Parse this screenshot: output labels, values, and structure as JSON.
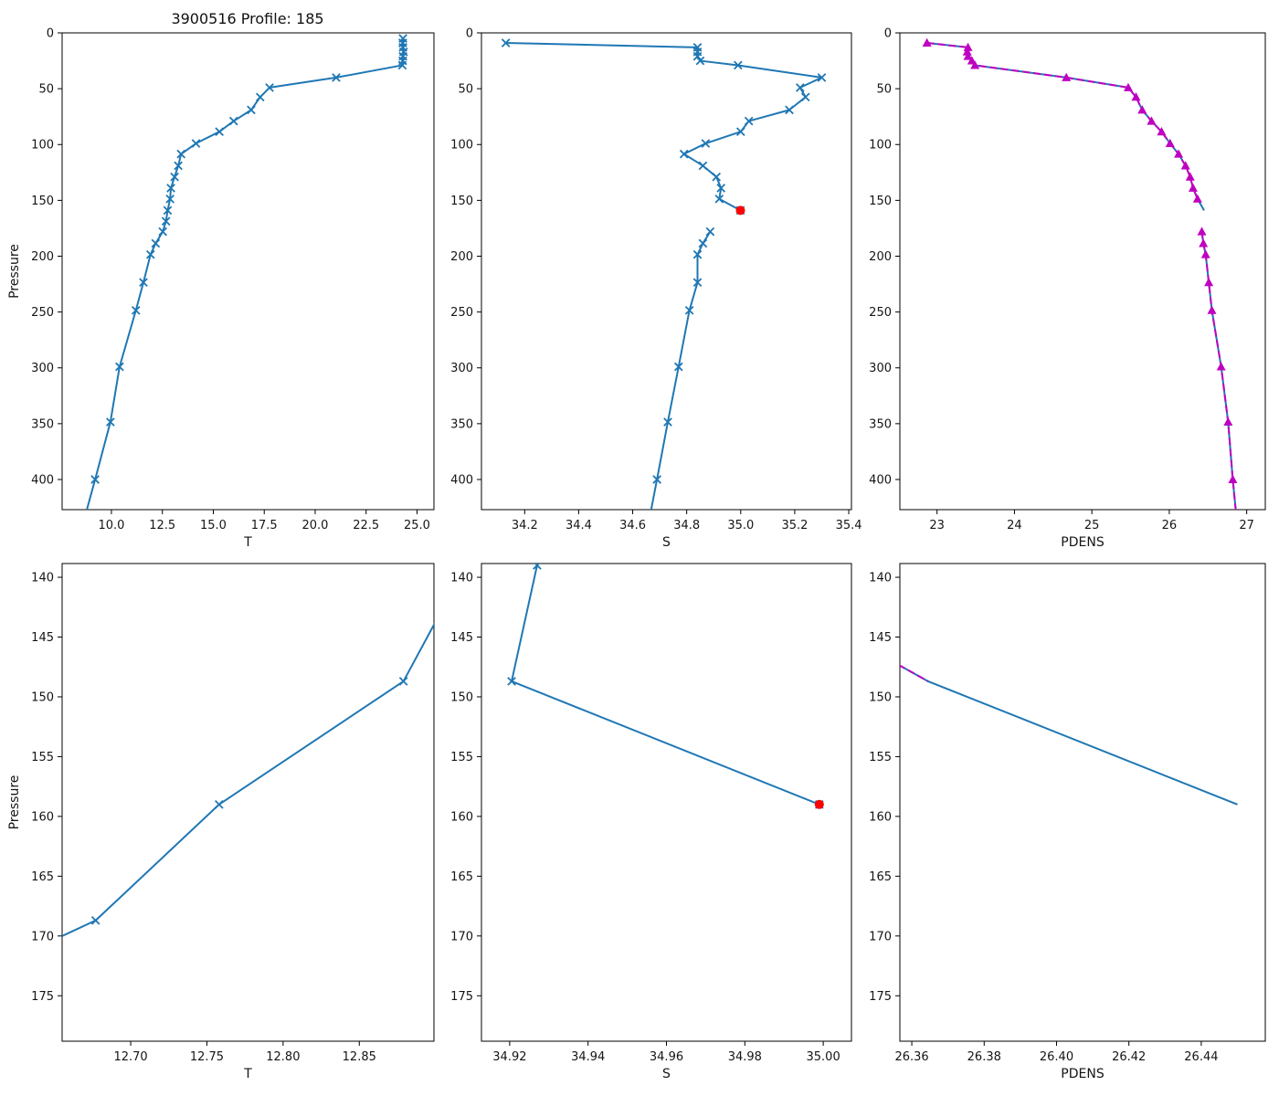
{
  "figure": {
    "title": "3900516 Profile: 185",
    "background": "#ffffff"
  },
  "chart_data": {
    "type": "line",
    "title": "3900516 Profile: 185",
    "legend": "none",
    "grid": false,
    "y_axis_inverted": true,
    "colors": {
      "profile_line": "#1f77b4",
      "qc_overlay": "#c000c0",
      "error_point": "#ff0000"
    },
    "plots": [
      {
        "id": "t-full",
        "xlabel": "T",
        "ylabel": "Pressure",
        "xlim": [
          7.58,
          25.83
        ],
        "ylim": [
          0,
          427
        ],
        "xticks": {
          "values": [
            10.0,
            12.5,
            15.0,
            17.5,
            20.0,
            22.5,
            25.0
          ],
          "labels": [
            "10.0",
            "12.5",
            "15.0",
            "17.5",
            "20.0",
            "22.5",
            "25.0"
          ]
        },
        "yticks": {
          "values": [
            0,
            50,
            100,
            150,
            200,
            250,
            300,
            350,
            400
          ],
          "labels": [
            "0",
            "50",
            "100",
            "150",
            "200",
            "250",
            "300",
            "350",
            "400"
          ]
        },
        "lines": [
          {
            "name": "temperature-profile",
            "color": "#1f77b4",
            "dash": null,
            "marker": "x",
            "points": [
              [
                24.31,
                5
              ],
              [
                24.3,
                9
              ],
              [
                24.31,
                13
              ],
              [
                24.34,
                17
              ],
              [
                24.31,
                21
              ],
              [
                24.3,
                25
              ],
              [
                24.28,
                29
              ],
              [
                21.03,
                40
              ],
              [
                17.76,
                49
              ],
              [
                17.3,
                57.5
              ],
              [
                16.86,
                69
              ],
              [
                16.0,
                79
              ],
              [
                15.3,
                88.5
              ],
              [
                14.15,
                99
              ],
              [
                13.42,
                108.5
              ],
              [
                13.28,
                119
              ],
              [
                13.1,
                129
              ],
              [
                12.92,
                139
              ],
              [
                12.879,
                148.7
              ],
              [
                12.758,
                159
              ],
              [
                12.677,
                168.7
              ],
              [
                12.52,
                178
              ],
              [
                12.17,
                188.5
              ],
              [
                11.92,
                198.5
              ],
              [
                11.57,
                223.5
              ],
              [
                11.2,
                248.5
              ],
              [
                10.4,
                299
              ],
              [
                9.95,
                348.5
              ],
              [
                9.2,
                400
              ],
              [
                8.45,
                450
              ]
            ]
          }
        ]
      },
      {
        "id": "s-full",
        "xlabel": "S",
        "ylabel": null,
        "xlim": [
          34.04,
          35.41
        ],
        "ylim": [
          0,
          427
        ],
        "xticks": {
          "values": [
            34.2,
            34.4,
            34.6,
            34.8,
            35.0,
            35.2,
            35.4
          ],
          "labels": [
            "34.2",
            "34.4",
            "34.6",
            "34.8",
            "35.0",
            "35.2",
            "35.4"
          ]
        },
        "yticks": {
          "values": [
            0,
            50,
            100,
            150,
            200,
            250,
            300,
            350,
            400
          ],
          "labels": [
            "0",
            "50",
            "100",
            "150",
            "200",
            "250",
            "300",
            "350",
            "400"
          ]
        },
        "lines": [
          {
            "name": "salinity-profile-upper",
            "color": "#1f77b4",
            "dash": null,
            "marker": "x",
            "points": [
              [
                34.13,
                9
              ],
              [
                34.84,
                13
              ],
              [
                34.84,
                17
              ],
              [
                34.84,
                21
              ],
              [
                34.85,
                25
              ],
              [
                34.99,
                29
              ],
              [
                35.3,
                40
              ],
              [
                35.22,
                49
              ],
              [
                35.24,
                57.5
              ],
              [
                35.18,
                69
              ],
              [
                35.03,
                79
              ],
              [
                35.0,
                88.5
              ],
              [
                34.87,
                99
              ],
              [
                34.79,
                108.5
              ],
              [
                34.86,
                119
              ],
              [
                34.91,
                129
              ],
              [
                34.927,
                139
              ],
              [
                34.9205,
                148.7
              ],
              [
                34.999,
                159
              ]
            ]
          },
          {
            "name": "salinity-profile-lower",
            "color": "#1f77b4",
            "dash": null,
            "marker": "x",
            "points": [
              [
                34.887,
                178
              ],
              [
                34.86,
                188.5
              ],
              [
                34.84,
                198.5
              ],
              [
                34.84,
                223.5
              ],
              [
                34.81,
                248.5
              ],
              [
                34.77,
                299
              ],
              [
                34.73,
                348.5
              ],
              [
                34.69,
                400
              ],
              [
                34.65,
                450
              ]
            ]
          }
        ],
        "error_point": {
          "value": 34.999,
          "pressure": 159,
          "color": "#ff0000"
        }
      },
      {
        "id": "pdens-full",
        "xlabel": "PDENS",
        "ylabel": null,
        "xlim": [
          22.52,
          27.24
        ],
        "ylim": [
          0,
          427
        ],
        "xticks": {
          "values": [
            23,
            24,
            25,
            26,
            27
          ],
          "labels": [
            "23",
            "24",
            "25",
            "26",
            "27"
          ]
        },
        "yticks": {
          "values": [
            0,
            50,
            100,
            150,
            200,
            250,
            300,
            350,
            400
          ],
          "labels": [
            "0",
            "50",
            "100",
            "150",
            "200",
            "250",
            "300",
            "350",
            "400"
          ]
        },
        "lines": [
          {
            "name": "pdens-raw-upper",
            "color": "#1f77b4",
            "dash": null,
            "marker": null,
            "points": [
              [
                22.87,
                9
              ],
              [
                23.4,
                13
              ],
              [
                23.39,
                17
              ],
              [
                23.4,
                21
              ],
              [
                23.45,
                25
              ],
              [
                23.49,
                29
              ],
              [
                24.67,
                40
              ],
              [
                25.47,
                49
              ],
              [
                25.57,
                57.5
              ],
              [
                25.65,
                69
              ],
              [
                25.77,
                79
              ],
              [
                25.9,
                88.5
              ],
              [
                26.01,
                99
              ],
              [
                26.12,
                108.5
              ],
              [
                26.21,
                119
              ],
              [
                26.27,
                129
              ],
              [
                26.307,
                139
              ],
              [
                26.3645,
                148.7
              ],
              [
                26.45,
                159
              ]
            ]
          },
          {
            "name": "pdens-raw-lower",
            "color": "#1f77b4",
            "dash": null,
            "marker": null,
            "points": [
              [
                26.42,
                178
              ],
              [
                26.44,
                188.5
              ],
              [
                26.47,
                198.5
              ],
              [
                26.51,
                223.5
              ],
              [
                26.55,
                248.5
              ],
              [
                26.67,
                299
              ],
              [
                26.76,
                348.5
              ],
              [
                26.82,
                400
              ],
              [
                26.89,
                450
              ]
            ]
          },
          {
            "name": "pdens-qc-upper",
            "color": "#c000c0",
            "dash": "8 4",
            "marker": "triangle",
            "points": [
              [
                22.87,
                9
              ],
              [
                23.4,
                13
              ],
              [
                23.39,
                17
              ],
              [
                23.4,
                21
              ],
              [
                23.45,
                25
              ],
              [
                23.49,
                29
              ],
              [
                24.67,
                40
              ],
              [
                25.47,
                49
              ],
              [
                25.57,
                57.5
              ],
              [
                25.65,
                69
              ],
              [
                25.77,
                79
              ],
              [
                25.9,
                88.5
              ],
              [
                26.01,
                99
              ],
              [
                26.12,
                108.5
              ],
              [
                26.21,
                119
              ],
              [
                26.27,
                129
              ],
              [
                26.307,
                139
              ],
              [
                26.3645,
                148.7
              ]
            ]
          },
          {
            "name": "pdens-qc-lower",
            "color": "#c000c0",
            "dash": "8 4",
            "marker": "triangle",
            "points": [
              [
                26.42,
                178
              ],
              [
                26.44,
                188.5
              ],
              [
                26.47,
                198.5
              ],
              [
                26.51,
                223.5
              ],
              [
                26.55,
                248.5
              ],
              [
                26.67,
                299
              ],
              [
                26.76,
                348.5
              ],
              [
                26.82,
                400
              ],
              [
                26.89,
                450
              ]
            ]
          }
        ]
      },
      {
        "id": "t-zoom",
        "xlabel": "T",
        "ylabel": "Pressure",
        "xlim": [
          12.655,
          12.899
        ],
        "ylim": [
          138.85,
          178.8
        ],
        "xticks": {
          "values": [
            12.7,
            12.75,
            12.8,
            12.85
          ],
          "labels": [
            "12.70",
            "12.75",
            "12.80",
            "12.85"
          ]
        },
        "yticks": {
          "values": [
            140,
            145,
            150,
            155,
            160,
            165,
            170,
            175
          ],
          "labels": [
            "140",
            "145",
            "150",
            "155",
            "160",
            "165",
            "170",
            "175"
          ]
        },
        "lines": [
          {
            "name": "temperature-zoom",
            "color": "#1f77b4",
            "dash": null,
            "marker": "x",
            "points": [
              [
                13.1,
                129
              ],
              [
                12.92,
                139
              ],
              [
                12.879,
                148.7
              ],
              [
                12.758,
                159
              ],
              [
                12.677,
                168.7
              ],
              [
                12.52,
                178
              ]
            ]
          }
        ]
      },
      {
        "id": "s-zoom",
        "xlabel": "S",
        "ylabel": null,
        "xlim": [
          34.9128,
          35.0072
        ],
        "ylim": [
          138.85,
          178.8
        ],
        "xticks": {
          "values": [
            34.92,
            34.94,
            34.96,
            34.98,
            35.0
          ],
          "labels": [
            "34.92",
            "34.94",
            "34.96",
            "34.98",
            "35.00"
          ]
        },
        "yticks": {
          "values": [
            140,
            145,
            150,
            155,
            160,
            165,
            170,
            175
          ],
          "labels": [
            "140",
            "145",
            "150",
            "155",
            "160",
            "165",
            "170",
            "175"
          ]
        },
        "lines": [
          {
            "name": "salinity-zoom",
            "color": "#1f77b4",
            "dash": null,
            "marker": "x",
            "points": [
              [
                34.91,
                129
              ],
              [
                34.927,
                139
              ],
              [
                34.9205,
                148.7
              ],
              [
                34.999,
                159
              ]
            ]
          }
        ],
        "error_point": {
          "value": 34.999,
          "pressure": 159,
          "color": "#ff0000"
        }
      },
      {
        "id": "pdens-zoom",
        "xlabel": "PDENS",
        "ylabel": null,
        "xlim": [
          26.3567,
          26.4577
        ],
        "ylim": [
          138.85,
          178.8
        ],
        "xticks": {
          "values": [
            26.36,
            26.38,
            26.4,
            26.42,
            26.44
          ],
          "labels": [
            "26.36",
            "26.38",
            "26.40",
            "26.42",
            "26.44"
          ]
        },
        "yticks": {
          "values": [
            140,
            145,
            150,
            155,
            160,
            165,
            170,
            175
          ],
          "labels": [
            "140",
            "145",
            "150",
            "155",
            "160",
            "165",
            "170",
            "175"
          ]
        },
        "lines": [
          {
            "name": "pdens-raw-zoom",
            "color": "#1f77b4",
            "dash": null,
            "marker": null,
            "points": [
              [
                26.27,
                129
              ],
              [
                26.307,
                139
              ],
              [
                26.3645,
                148.7
              ],
              [
                26.45,
                159
              ]
            ]
          },
          {
            "name": "pdens-qc-zoom",
            "color": "#c000c0",
            "dash": "8 4",
            "marker": null,
            "points": [
              [
                26.27,
                129
              ],
              [
                26.307,
                139
              ],
              [
                26.3645,
                148.7
              ]
            ]
          }
        ]
      }
    ]
  }
}
